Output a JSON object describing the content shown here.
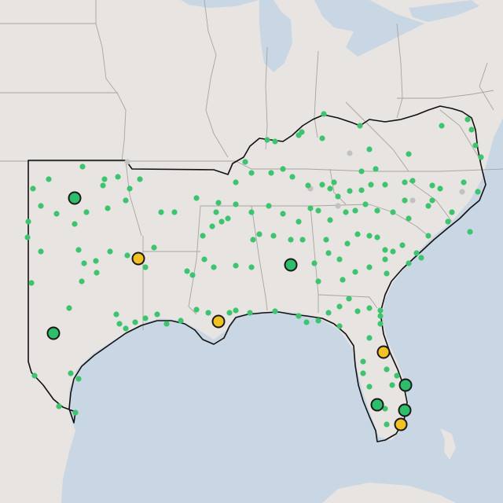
{
  "map": {
    "style": "light-gray-basemap",
    "colors": {
      "land": "#e8e4e2",
      "water": "#c8d7e3",
      "state_border": "#a8a4a2",
      "region_outline": "#111111",
      "station_small": "#3cc46e",
      "station_small_inactive": "#c2c2c2",
      "station_large_green": "#2ebd6a",
      "station_large_yellow": "#f2c224",
      "marker_outline": "#1a1a1a"
    },
    "legend": null
  },
  "markers": {
    "large": [
      {
        "name": "large-marker-green-oklahoma",
        "status": "green"
      },
      {
        "name": "large-marker-yellow-arkansas-border",
        "status": "yellow"
      },
      {
        "name": "large-marker-green-west-texas",
        "status": "green"
      },
      {
        "name": "large-marker-yellow-louisiana",
        "status": "yellow"
      },
      {
        "name": "large-marker-green-alabama",
        "status": "green"
      },
      {
        "name": "large-marker-yellow-central-florida",
        "status": "yellow"
      },
      {
        "name": "large-marker-green-south-florida-east",
        "status": "green"
      },
      {
        "name": "large-marker-green-south-florida-west",
        "status": "green"
      },
      {
        "name": "large-marker-green-miami",
        "status": "green"
      },
      {
        "name": "large-marker-yellow-keys",
        "status": "yellow"
      }
    ]
  }
}
